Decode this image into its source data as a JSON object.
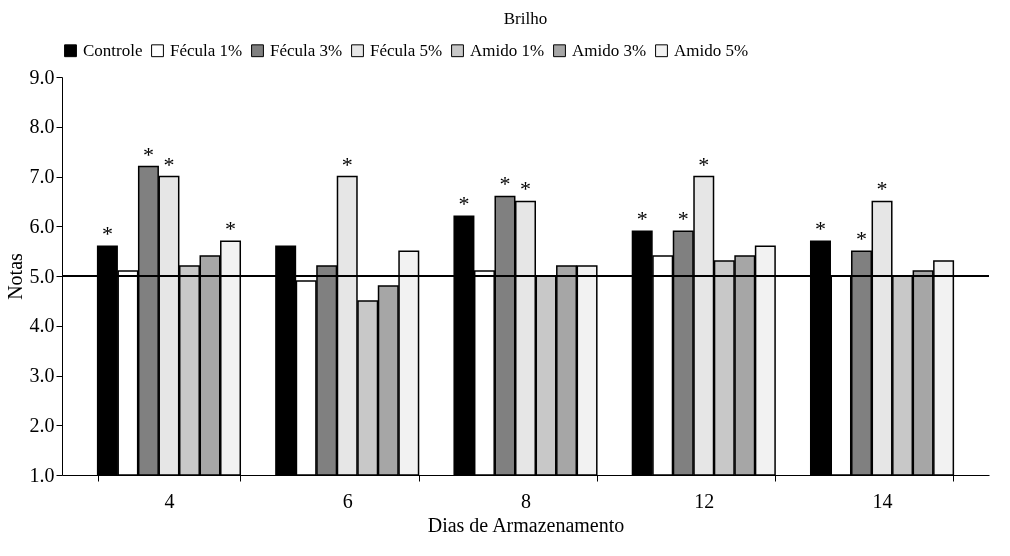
{
  "chart_data": {
    "type": "bar",
    "title": "Brilho",
    "xlabel": "Dias de Armazenamento",
    "ylabel": "Notas",
    "categories": [
      "4",
      "6",
      "8",
      "12",
      "14"
    ],
    "series": [
      {
        "name": "Controle",
        "color": "#000000",
        "values": [
          5.6,
          5.6,
          6.2,
          5.9,
          5.7
        ],
        "value_labels": [
          "*",
          null,
          "*",
          "*",
          "*"
        ]
      },
      {
        "name": "Fécula 1%",
        "color": "#ffffff",
        "values": [
          5.1,
          4.9,
          5.1,
          5.4,
          5.0
        ],
        "value_labels": [
          null,
          null,
          null,
          null,
          null
        ]
      },
      {
        "name": "Fécula 3%",
        "color": "#808080",
        "values": [
          7.2,
          5.2,
          6.6,
          5.9,
          5.5
        ],
        "value_labels": [
          "*",
          null,
          "*",
          "*",
          "*"
        ]
      },
      {
        "name": "Fécula 5%",
        "color": "#e6e6e6",
        "values": [
          7.0,
          7.0,
          6.5,
          7.0,
          6.5
        ],
        "value_labels": [
          "*",
          "*",
          "*",
          "*",
          "*"
        ]
      },
      {
        "name": "Amido 1%",
        "color": "#c8c8c8",
        "values": [
          5.2,
          4.5,
          5.0,
          5.3,
          5.0
        ],
        "value_labels": [
          null,
          null,
          null,
          null,
          null
        ]
      },
      {
        "name": "Amido 3%",
        "color": "#a6a6a6",
        "values": [
          5.4,
          4.8,
          5.2,
          5.4,
          5.1
        ],
        "value_labels": [
          null,
          null,
          null,
          null,
          null
        ]
      },
      {
        "name": "Amido 5%",
        "color": "#f2f2f2",
        "values": [
          5.7,
          5.5,
          5.2,
          5.6,
          5.3
        ],
        "value_labels": [
          "*",
          null,
          null,
          null,
          null
        ]
      }
    ],
    "ylim": [
      1,
      9
    ],
    "yticks": [
      {
        "value": 1,
        "label": "1.0"
      },
      {
        "value": 2,
        "label": "2.0"
      },
      {
        "value": 3,
        "label": "3.0"
      },
      {
        "value": 4,
        "label": "4.0"
      },
      {
        "value": 5,
        "label": "5.0"
      },
      {
        "value": 6,
        "label": "6.0"
      },
      {
        "value": 7,
        "label": "7.0"
      },
      {
        "value": 8,
        "label": "8.0"
      },
      {
        "value": 9,
        "label": "9.0"
      }
    ],
    "ref_lines": [
      {
        "axis": "y",
        "value": 5,
        "color": "#000000"
      }
    ],
    "legend": "top",
    "grid": false
  }
}
